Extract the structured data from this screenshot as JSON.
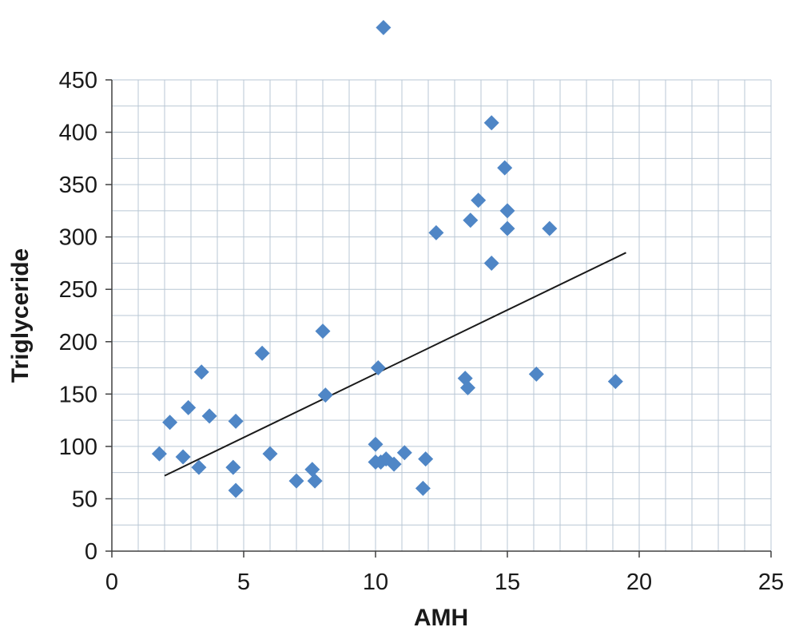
{
  "chart_data": {
    "type": "scatter",
    "title": "",
    "xlabel": "AMH",
    "ylabel": "Triglyceride",
    "xlim": [
      0,
      25
    ],
    "ylim": [
      0,
      450
    ],
    "x_ticks": [
      0,
      5,
      10,
      15,
      20,
      25
    ],
    "y_ticks": [
      0,
      50,
      100,
      150,
      200,
      250,
      300,
      350,
      400,
      450
    ],
    "x_minor_step": 1,
    "y_minor_step": 25,
    "grid": "on",
    "legend": "none",
    "marker_shape": "diamond",
    "marker_color": "#4f86c6",
    "marker_size": 9.5,
    "grid_color": "#b9c7d4",
    "axis_color": "#404040",
    "trendline": {
      "x1": 2.0,
      "y1": 72,
      "x2": 19.5,
      "y2": 285,
      "color": "#1a1a1a"
    },
    "points": [
      [
        1.8,
        93
      ],
      [
        2.2,
        123
      ],
      [
        2.7,
        90
      ],
      [
        2.9,
        137
      ],
      [
        3.3,
        80
      ],
      [
        3.4,
        171
      ],
      [
        3.7,
        129
      ],
      [
        4.6,
        80
      ],
      [
        4.7,
        124
      ],
      [
        4.7,
        58
      ],
      [
        5.7,
        189
      ],
      [
        6.0,
        93
      ],
      [
        7.0,
        67
      ],
      [
        7.6,
        78
      ],
      [
        7.7,
        67
      ],
      [
        8.0,
        210
      ],
      [
        8.1,
        149
      ],
      [
        10.0,
        102
      ],
      [
        10.0,
        85
      ],
      [
        10.1,
        175
      ],
      [
        10.2,
        85
      ],
      [
        10.4,
        88
      ],
      [
        10.7,
        83
      ],
      [
        11.1,
        94
      ],
      [
        11.8,
        60
      ],
      [
        11.9,
        88
      ],
      [
        12.3,
        304
      ],
      [
        13.4,
        165
      ],
      [
        13.5,
        156
      ],
      [
        13.6,
        316
      ],
      [
        13.9,
        335
      ],
      [
        14.4,
        409
      ],
      [
        14.4,
        275
      ],
      [
        14.9,
        366
      ],
      [
        15.0,
        325
      ],
      [
        15.0,
        308
      ],
      [
        16.1,
        169
      ],
      [
        16.6,
        308
      ],
      [
        19.1,
        162
      ],
      [
        10.3,
        500
      ]
    ]
  }
}
